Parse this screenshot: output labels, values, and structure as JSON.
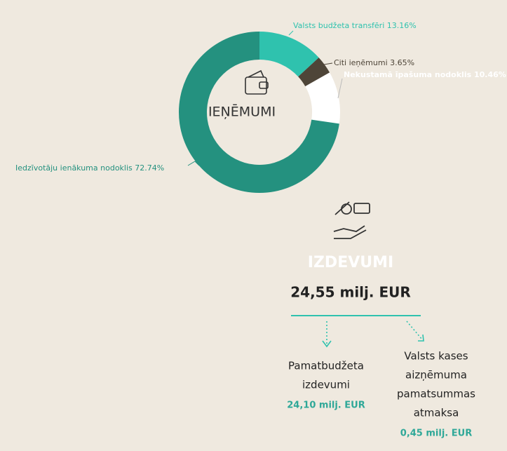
{
  "chart_data": {
    "type": "pie",
    "title": "IEŅĒMUMI",
    "categories": [
      "Valsts budžeta transfēri",
      "Citi ieņēmumi",
      "Nekustamā īpašuma nodoklis",
      "Iedzīvotāju ienākuma nodoklis"
    ],
    "values": [
      13.16,
      3.65,
      10.46,
      72.74
    ],
    "value_labels": [
      "13.16%",
      "3.65%",
      "10.46%",
      "72.74%"
    ],
    "colors": [
      "#2fc2ae",
      "#4e4538",
      "#ffffff",
      "#24917f"
    ]
  },
  "expenses": {
    "title": "IZDEVUMI",
    "total": "24,55 milj. EUR",
    "items": [
      {
        "lines": [
          "Pamatbudžeta",
          "izdevumi"
        ],
        "amount": "24,10 milj. EUR"
      },
      {
        "lines": [
          "Valsts kases",
          "aizņēmuma",
          "pamatsummas",
          "atmaksa"
        ],
        "amount": "0,45 milj. EUR"
      }
    ]
  }
}
